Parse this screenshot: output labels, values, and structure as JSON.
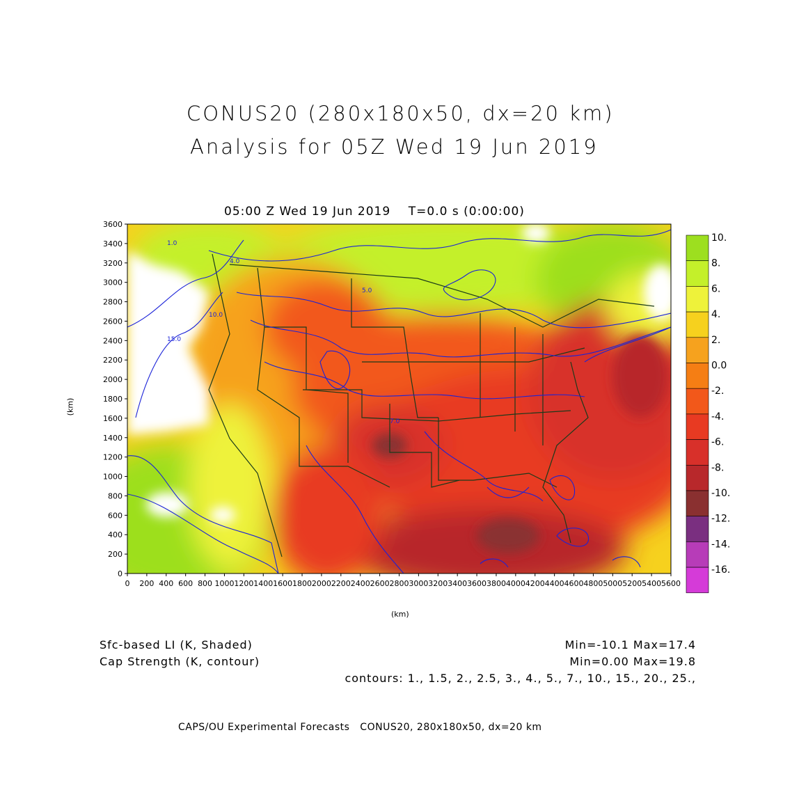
{
  "header": {
    "title_line1": "CONUS20 (280x180x50, dx=20 km)",
    "title_line2": "Analysis for 05Z Wed 19 Jun 2019"
  },
  "plot": {
    "time_label": "05:00 Z Wed 19 Jun 2019    T=0.0 s (0:00:00)",
    "x_axis_label": "(km)",
    "y_axis_label": "(km)",
    "x_ticks": [
      "0",
      "200",
      "400",
      "600",
      "800",
      "1000",
      "1200",
      "1400",
      "1600",
      "1800",
      "2000",
      "2200",
      "2400",
      "2600",
      "2800",
      "3000",
      "3200",
      "3400",
      "3600",
      "3800",
      "4000",
      "4200",
      "4400",
      "4600",
      "4800",
      "5000",
      "5200",
      "5400",
      "5600"
    ],
    "y_ticks": [
      "0",
      "200",
      "400",
      "600",
      "800",
      "1000",
      "1200",
      "1400",
      "1600",
      "1800",
      "2000",
      "2200",
      "2400",
      "2600",
      "2800",
      "3000",
      "3200",
      "3400",
      "3600"
    ],
    "x_range": [
      0,
      5600
    ],
    "y_range": [
      0,
      3600
    ]
  },
  "colorbar": {
    "labels": [
      "10.",
      "8.",
      "6.",
      "4.",
      "2.",
      "0.0",
      "-2.",
      "-4.",
      "-6.",
      "-8.",
      "-10.",
      "-12.",
      "-14.",
      "-16."
    ],
    "colors": [
      "#9ddf1f",
      "#c4f02a",
      "#eef23a",
      "#f6d11e",
      "#f6a21e",
      "#f57e14",
      "#f2581a",
      "#e83a22",
      "#d8302a",
      "#b8282b",
      "#8a3030",
      "#7a2f80",
      "#b73cb8",
      "#d53bd8"
    ]
  },
  "legend": {
    "shaded_label": "Sfc-based LI (K, Shaded)",
    "shaded_minmax": "Min=-10.1 Max=17.4",
    "contour_label": "Cap Strength (K, contour)",
    "contour_minmax": "Min=0.00 Max=19.8",
    "contour_levels": "contours: 1., 1.5, 2., 2.5, 3., 4., 5., 7., 10., 15., 20., 25.,"
  },
  "map_labels": {
    "contour_values": [
      "1.0",
      "4.0",
      "5.0",
      "10.0",
      "15.0",
      "7.0"
    ]
  },
  "footer": {
    "credit": "CAPS/OU Experimental Forecasts   CONUS20, 280x180x50, dx=20 km"
  }
}
